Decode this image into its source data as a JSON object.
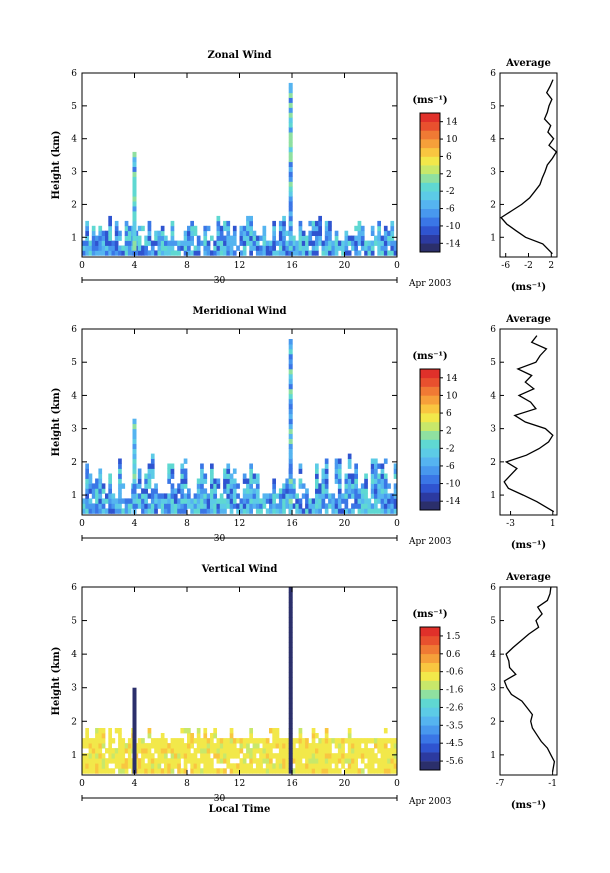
{
  "colors": {
    "scale": [
      "#2b2f6b",
      "#2c3aa0",
      "#2f54d0",
      "#3a76e6",
      "#4898ee",
      "#55b4f0",
      "#5ccbe6",
      "#5fd8d2",
      "#8fe0a0",
      "#c8e86a",
      "#f2e84a",
      "#f9c640",
      "#f6a03a",
      "#f07a34",
      "#e8502e",
      "#e0302a"
    ]
  },
  "chart_data": [
    {
      "type": "heatmap",
      "name": "zonal",
      "title": "Zonal Wind",
      "ylabel": "Height (km)",
      "xticks": [
        "0",
        "4",
        "8",
        "12",
        "16",
        "20",
        "0"
      ],
      "yticks": [
        "1",
        "2",
        "3",
        "4",
        "5",
        "6"
      ],
      "xlim": [
        0,
        24
      ],
      "ylim": [
        0.4,
        6
      ],
      "date_axis": {
        "day": "30",
        "label": "Apr 2003"
      },
      "colorbar": {
        "unit": "(ms⁻¹)",
        "ticks": [
          "14",
          "10",
          "6",
          "2",
          "-2",
          "-6",
          "-10",
          "-14"
        ],
        "min": -16,
        "max": 16
      },
      "profile": {
        "title": "Average",
        "xticks": [
          "-6",
          "-2",
          "2"
        ],
        "xlim": [
          -7,
          3
        ],
        "xlabel": "(ms⁻¹)",
        "heights": [
          0.5,
          0.8,
          1.0,
          1.2,
          1.4,
          1.6,
          1.8,
          2.0,
          2.2,
          2.4,
          2.6,
          2.8,
          3.0,
          3.2,
          3.4,
          3.6,
          3.8,
          4.0,
          4.2,
          4.4,
          4.6,
          4.8,
          5.0,
          5.2,
          5.4,
          5.6,
          5.8
        ],
        "values": [
          2.2,
          0.5,
          -2.5,
          -4.2,
          -5.8,
          -6.8,
          -5.0,
          -3.2,
          -1.8,
          -0.9,
          0.0,
          0.4,
          0.9,
          1.3,
          2.2,
          2.9,
          1.6,
          2.4,
          1.4,
          1.9,
          0.8,
          1.3,
          1.6,
          2.1,
          1.2,
          1.8,
          2.3
        ]
      }
    },
    {
      "type": "heatmap",
      "name": "meridional",
      "title": "Meridional Wind",
      "ylabel": "Height (km)",
      "xticks": [
        "0",
        "4",
        "8",
        "12",
        "16",
        "20",
        "0"
      ],
      "yticks": [
        "1",
        "2",
        "3",
        "4",
        "5",
        "6"
      ],
      "xlim": [
        0,
        24
      ],
      "ylim": [
        0.4,
        6
      ],
      "date_axis": {
        "day": "30",
        "label": "Apr 2003"
      },
      "colorbar": {
        "unit": "(ms⁻¹)",
        "ticks": [
          "14",
          "10",
          "6",
          "2",
          "-2",
          "-6",
          "-10",
          "-14"
        ],
        "min": -16,
        "max": 16
      },
      "profile": {
        "title": "Average",
        "xticks": [
          "-3",
          "1"
        ],
        "xlim": [
          -4,
          1.4
        ],
        "xlabel": "(ms⁻¹)",
        "heights": [
          0.5,
          0.8,
          1.0,
          1.2,
          1.4,
          1.6,
          1.8,
          2.0,
          2.2,
          2.4,
          2.6,
          2.8,
          3.0,
          3.2,
          3.4,
          3.6,
          3.8,
          4.0,
          4.2,
          4.4,
          4.6,
          4.8,
          5.0,
          5.2,
          5.4,
          5.6,
          5.8
        ],
        "values": [
          1.1,
          -0.5,
          -1.8,
          -3.2,
          -3.6,
          -3.0,
          -2.4,
          -3.4,
          -1.5,
          -0.3,
          0.6,
          1.0,
          0.3,
          -1.6,
          -2.6,
          -0.6,
          -1.1,
          -2.2,
          -0.8,
          -1.6,
          -1.0,
          -2.3,
          -0.6,
          -0.2,
          0.4,
          -1.0,
          -0.5
        ]
      }
    },
    {
      "type": "heatmap",
      "name": "vertical",
      "title": "Vertical Wind",
      "ylabel": "Height (km)",
      "xlabel": "Local Time",
      "xticks": [
        "0",
        "4",
        "8",
        "12",
        "16",
        "20",
        "0"
      ],
      "yticks": [
        "1",
        "2",
        "3",
        "4",
        "5",
        "6"
      ],
      "xlim": [
        0,
        24
      ],
      "ylim": [
        0.4,
        6
      ],
      "date_axis": {
        "day": "30",
        "label": "Apr 2003"
      },
      "colorbar": {
        "unit": "(ms⁻¹)",
        "ticks": [
          "1.5",
          "0.6",
          "-0.6",
          "-1.6",
          "-2.6",
          "-3.5",
          "-4.5",
          "-5.6"
        ],
        "min": -6,
        "max": 2
      },
      "profile": {
        "title": "Average",
        "xticks": [
          "-7",
          "-1"
        ],
        "xlim": [
          -7,
          -0.5
        ],
        "xlabel": "(ms⁻¹)",
        "heights": [
          0.5,
          0.8,
          1.0,
          1.2,
          1.4,
          1.6,
          1.8,
          2.0,
          2.2,
          2.4,
          2.6,
          2.8,
          3.0,
          3.2,
          3.4,
          3.6,
          3.8,
          4.0,
          4.2,
          4.4,
          4.6,
          4.8,
          5.0,
          5.2,
          5.4,
          5.6,
          5.8,
          6.0
        ],
        "values": [
          -1.0,
          -0.8,
          -1.2,
          -1.6,
          -2.3,
          -2.8,
          -3.3,
          -3.5,
          -3.3,
          -3.9,
          -4.5,
          -5.7,
          -6.2,
          -6.5,
          -5.2,
          -5.9,
          -6.0,
          -6.3,
          -5.5,
          -4.6,
          -3.7,
          -2.6,
          -2.9,
          -2.2,
          -2.7,
          -1.6,
          -1.3,
          -1.2
        ]
      }
    }
  ]
}
